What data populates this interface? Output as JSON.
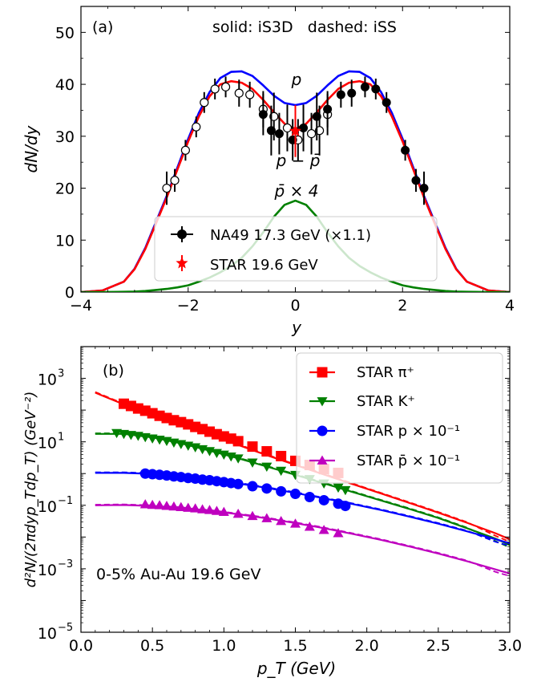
{
  "chart_data": [
    {
      "type": "line",
      "panel_label": "(a)",
      "header_text": "solid: iS3D   dashed: iSS",
      "xlabel": "y",
      "ylabel": "dN/dy",
      "xlim": [
        -4,
        4
      ],
      "ylim": [
        0,
        55
      ],
      "xticks": [
        -4,
        -2,
        0,
        2,
        4
      ],
      "xtick_labels": [
        "−4",
        "−2",
        "0",
        "2",
        "4"
      ],
      "yticks": [
        0,
        10,
        20,
        30,
        40,
        50
      ],
      "ytick_labels": [
        "0",
        "10",
        "20",
        "30",
        "40",
        "50"
      ],
      "curve_labels": {
        "p": "p",
        "net_p": "p − p̄",
        "pbar": "p̄ × 4"
      },
      "legend": {
        "na49": "NA49 17.3 GeV (×1.1)",
        "star": "STAR 19.6 GeV"
      },
      "curves": {
        "x": [
          -4.0,
          -3.6,
          -3.2,
          -3.0,
          -2.8,
          -2.6,
          -2.4,
          -2.2,
          -2.0,
          -1.8,
          -1.6,
          -1.4,
          -1.2,
          -1.0,
          -0.8,
          -0.6,
          -0.4,
          -0.2,
          0.0,
          0.2,
          0.4,
          0.6,
          0.8,
          1.0,
          1.2,
          1.4,
          1.6,
          1.8,
          2.0,
          2.2,
          2.4,
          2.6,
          2.8,
          3.0,
          3.2,
          3.6,
          4.0
        ],
        "p": [
          0.0,
          0.3,
          2.0,
          4.5,
          8.5,
          13.5,
          18.5,
          24.0,
          29.5,
          34.5,
          38.5,
          41.2,
          42.4,
          42.5,
          41.6,
          39.8,
          37.8,
          36.4,
          36.0,
          36.4,
          37.8,
          39.8,
          41.6,
          42.5,
          42.4,
          41.2,
          38.5,
          34.5,
          29.5,
          24.0,
          18.5,
          13.5,
          8.5,
          4.5,
          2.0,
          0.3,
          0.0
        ],
        "net_p": [
          0.0,
          0.3,
          2.0,
          4.4,
          8.3,
          13.2,
          18.2,
          23.6,
          29.0,
          33.8,
          37.7,
          40.0,
          40.6,
          40.3,
          39.1,
          37.0,
          34.6,
          32.4,
          31.4,
          32.4,
          34.6,
          37.0,
          39.1,
          40.3,
          40.6,
          40.0,
          37.7,
          33.8,
          29.0,
          23.6,
          18.2,
          13.2,
          8.3,
          4.4,
          2.0,
          0.3,
          0.0
        ],
        "pbar4": [
          0.0,
          0.0,
          0.05,
          0.1,
          0.2,
          0.4,
          0.6,
          0.9,
          1.3,
          2.0,
          2.8,
          3.8,
          5.0,
          6.6,
          8.8,
          11.5,
          14.5,
          16.8,
          17.6,
          16.8,
          14.5,
          11.5,
          8.8,
          6.6,
          5.0,
          3.8,
          2.8,
          2.0,
          1.3,
          0.9,
          0.6,
          0.4,
          0.2,
          0.1,
          0.05,
          0.0,
          0.0
        ]
      },
      "na49_filled": {
        "y": [
          -0.6,
          -0.45,
          -0.3,
          -0.05,
          0.15,
          0.4,
          0.6,
          0.85,
          1.05,
          1.3,
          1.5,
          1.7,
          2.05,
          2.25,
          2.4
        ],
        "v": [
          34.2,
          31.1,
          30.5,
          29.3,
          31.6,
          33.8,
          35.2,
          38.0,
          38.3,
          39.5,
          39.1,
          36.5,
          27.3,
          21.5,
          20.0
        ],
        "err": [
          4.0,
          4.8,
          4.0,
          4.0,
          4.5,
          4.6,
          3.5,
          2.5,
          2.6,
          2.0,
          2.0,
          2.0,
          2.0,
          2.2,
          3.2
        ]
      },
      "na49_open": {
        "y": [
          -2.4,
          -2.25,
          -2.05,
          -1.85,
          -1.7,
          -1.5,
          -1.3,
          -1.05,
          -0.85,
          -0.6,
          -0.4,
          -0.15,
          0.05,
          0.3,
          0.45,
          0.6
        ],
        "v": [
          20.0,
          21.5,
          27.3,
          31.8,
          36.5,
          39.1,
          39.5,
          38.3,
          38.0,
          35.2,
          33.8,
          31.6,
          29.3,
          30.5,
          31.1,
          34.2
        ],
        "err": [
          3.2,
          2.2,
          2.0,
          2.0,
          2.0,
          2.0,
          2.0,
          2.6,
          2.5,
          3.5,
          4.6,
          4.5,
          4.0,
          4.0,
          4.8,
          4.0
        ]
      },
      "star_point": {
        "y": 0.0,
        "v": 31.0,
        "err": 5.0
      }
    },
    {
      "type": "scatter",
      "panel_label": "(b)",
      "annotation": "0-5% Au-Au 19.6 GeV",
      "xlabel": "p_T (GeV)",
      "ylabel": "d²N/(2πdyp_Tdp_T) (GeV⁻²)",
      "xlim": [
        0.0,
        3.0
      ],
      "ylog_lim": [
        -5,
        4
      ],
      "xticks": [
        0.0,
        0.5,
        1.0,
        1.5,
        2.0,
        2.5,
        3.0
      ],
      "xtick_labels": [
        "0.0",
        "0.5",
        "1.0",
        "1.5",
        "2.0",
        "2.5",
        "3.0"
      ],
      "ytick_exponents": [
        3,
        1,
        -1,
        -3,
        -5
      ],
      "ytick_labels": [
        "10",
        "10",
        "10",
        "10",
        "10"
      ],
      "ytick_sup": [
        "3",
        "1",
        "−1",
        "−3",
        "−5"
      ],
      "legend": [
        "STAR π⁺",
        "STAR K⁺",
        "STAR p × 10⁻¹",
        "STAR p̄ × 10⁻¹"
      ],
      "series": [
        {
          "name": "STAR π⁺",
          "color": "#ff0000",
          "marker": "square",
          "curve_x": [
            0.1,
            0.3,
            0.5,
            0.7,
            0.9,
            1.1,
            1.3,
            1.5,
            1.7,
            1.9,
            2.1,
            2.3,
            2.5,
            2.7,
            2.9,
            3.0
          ],
          "curve_log": [
            2.55,
            2.18,
            1.85,
            1.53,
            1.22,
            0.9,
            0.58,
            0.27,
            -0.03,
            -0.33,
            -0.63,
            -0.93,
            -1.23,
            -1.55,
            -1.88,
            -2.07
          ],
          "data_x": [
            0.3,
            0.35,
            0.4,
            0.45,
            0.5,
            0.55,
            0.6,
            0.65,
            0.7,
            0.75,
            0.8,
            0.85,
            0.9,
            0.95,
            1.0,
            1.05,
            1.1,
            1.2,
            1.3,
            1.4,
            1.5,
            1.6,
            1.7,
            1.8
          ],
          "data_log": [
            2.2,
            2.13,
            2.05,
            1.98,
            1.9,
            1.82,
            1.75,
            1.68,
            1.62,
            1.55,
            1.47,
            1.4,
            1.32,
            1.24,
            1.17,
            1.1,
            1.02,
            0.85,
            0.7,
            0.55,
            0.4,
            0.27,
            0.14,
            0.02
          ]
        },
        {
          "name": "STAR K⁺",
          "color": "#008000",
          "marker": "triangle-down",
          "curve_x": [
            0.1,
            0.3,
            0.5,
            0.7,
            0.9,
            1.1,
            1.3,
            1.5,
            1.7,
            1.9,
            2.1,
            2.3,
            2.5,
            2.7,
            2.9,
            3.0
          ],
          "curve_log": [
            1.25,
            1.25,
            1.14,
            0.95,
            0.72,
            0.48,
            0.22,
            -0.04,
            -0.31,
            -0.58,
            -0.85,
            -1.12,
            -1.4,
            -1.72,
            -2.05,
            -2.25
          ],
          "data_x": [
            0.25,
            0.3,
            0.35,
            0.4,
            0.45,
            0.5,
            0.55,
            0.6,
            0.65,
            0.7,
            0.75,
            0.8,
            0.85,
            0.9,
            0.95,
            1.0,
            1.05,
            1.1,
            1.2,
            1.3,
            1.4,
            1.5,
            1.6,
            1.7,
            1.8,
            1.85
          ],
          "data_log": [
            1.28,
            1.25,
            1.22,
            1.19,
            1.15,
            1.11,
            1.07,
            1.03,
            0.98,
            0.93,
            0.88,
            0.83,
            0.77,
            0.71,
            0.65,
            0.6,
            0.54,
            0.48,
            0.35,
            0.22,
            0.09,
            -0.04,
            -0.17,
            -0.31,
            -0.44,
            -0.52
          ]
        },
        {
          "name": "STAR p × 10⁻¹",
          "color": "#0000ff",
          "marker": "circle",
          "curve_x": [
            0.1,
            0.3,
            0.5,
            0.7,
            0.9,
            1.1,
            1.3,
            1.5,
            1.7,
            1.9,
            2.1,
            2.3,
            2.5,
            2.7,
            2.9,
            3.0
          ],
          "curve_log": [
            0.02,
            0.02,
            -0.01,
            -0.09,
            -0.19,
            -0.31,
            -0.45,
            -0.61,
            -0.78,
            -0.96,
            -1.15,
            -1.36,
            -1.58,
            -1.82,
            -2.07,
            -2.2
          ],
          "data_x": [
            0.45,
            0.5,
            0.55,
            0.6,
            0.65,
            0.7,
            0.75,
            0.8,
            0.85,
            0.9,
            0.95,
            1.0,
            1.05,
            1.1,
            1.2,
            1.3,
            1.4,
            1.5,
            1.6,
            1.7,
            1.8,
            1.85
          ],
          "data_log": [
            0.0,
            -0.02,
            -0.04,
            -0.06,
            -0.09,
            -0.11,
            -0.14,
            -0.16,
            -0.19,
            -0.21,
            -0.24,
            -0.27,
            -0.3,
            -0.33,
            -0.4,
            -0.47,
            -0.56,
            -0.64,
            -0.74,
            -0.84,
            -0.95,
            -1.02
          ]
        },
        {
          "name": "STAR p̄ × 10⁻¹",
          "color": "#bf00bf",
          "marker": "triangle-up",
          "curve_x": [
            0.1,
            0.3,
            0.5,
            0.7,
            0.9,
            1.1,
            1.3,
            1.5,
            1.7,
            1.9,
            2.1,
            2.3,
            2.5,
            2.7,
            2.9,
            3.0
          ],
          "curve_log": [
            -1.0,
            -0.99,
            -1.02,
            -1.08,
            -1.17,
            -1.28,
            -1.41,
            -1.56,
            -1.72,
            -1.9,
            -2.09,
            -2.3,
            -2.52,
            -2.76,
            -3.02,
            -3.15
          ],
          "data_x": [
            0.45,
            0.5,
            0.55,
            0.6,
            0.65,
            0.7,
            0.75,
            0.8,
            0.85,
            0.9,
            0.95,
            1.0,
            1.1,
            1.2,
            1.3,
            1.4,
            1.5,
            1.6,
            1.7,
            1.8
          ],
          "data_log": [
            -0.97,
            -0.99,
            -1.0,
            -1.02,
            -1.04,
            -1.06,
            -1.08,
            -1.1,
            -1.13,
            -1.15,
            -1.18,
            -1.21,
            -1.27,
            -1.34,
            -1.41,
            -1.5,
            -1.58,
            -1.68,
            -1.78,
            -1.88
          ]
        }
      ]
    }
  ]
}
